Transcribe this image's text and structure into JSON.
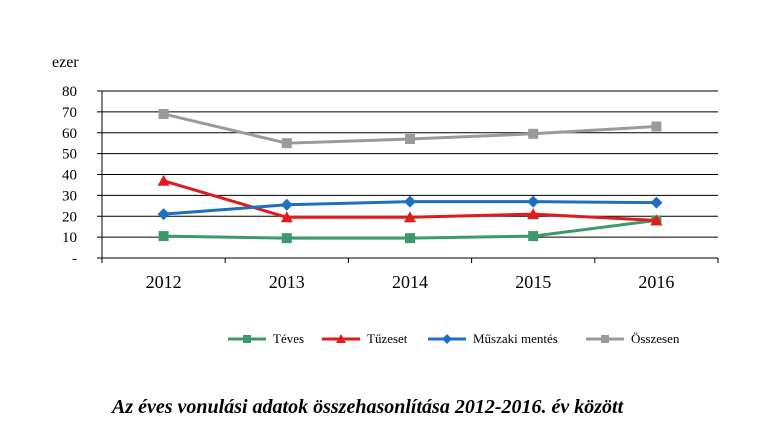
{
  "chart_data": {
    "type": "line",
    "unit_label": "ezer",
    "categories": [
      "2012",
      "2013",
      "2014",
      "2015",
      "2016"
    ],
    "ylim": [
      0,
      80
    ],
    "y_ticks": [
      {
        "value": 80,
        "label": "80"
      },
      {
        "value": 70,
        "label": "70"
      },
      {
        "value": 60,
        "label": "60"
      },
      {
        "value": 50,
        "label": "50"
      },
      {
        "value": 40,
        "label": "40"
      },
      {
        "value": 30,
        "label": "30"
      },
      {
        "value": 20,
        "label": "20"
      },
      {
        "value": 10,
        "label": "10"
      },
      {
        "value": 0,
        "label": "-"
      }
    ],
    "grid": true,
    "legend_position": "bottom",
    "series": [
      {
        "name": "Téves",
        "color": "#3a9a6a",
        "marker": "square",
        "values": [
          10.5,
          9.5,
          9.5,
          10.5,
          18
        ]
      },
      {
        "name": "Tűzeset",
        "color": "#e01b1b",
        "marker": "triangle",
        "values": [
          37,
          19.5,
          19.5,
          21,
          18
        ]
      },
      {
        "name": "Műszaki mentés",
        "color": "#1f6fc0",
        "marker": "diamond",
        "values": [
          21,
          25.5,
          27,
          27,
          26.5
        ]
      },
      {
        "name": "Összesen",
        "color": "#9a9a9a",
        "marker": "square",
        "values": [
          69,
          55,
          57,
          59.5,
          63
        ]
      }
    ],
    "caption": "Az éves vonulási adatok összehasonlítása 2012-2016. év között"
  }
}
